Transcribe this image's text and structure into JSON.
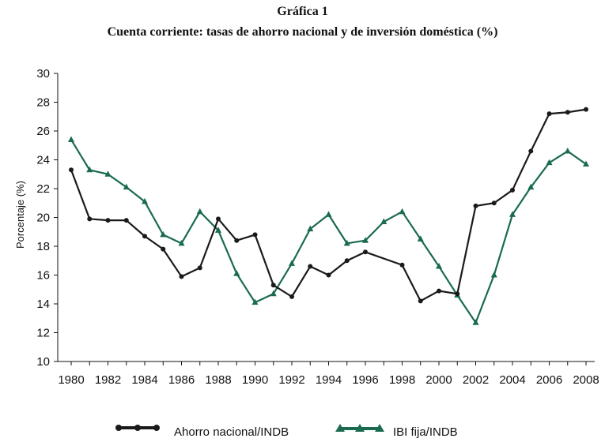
{
  "chart_data": {
    "type": "line",
    "title": "Gráfica 1",
    "subtitle": "Cuenta corriente: tasas de ahorro nacional y de inversión doméstica (%)",
    "xlabel": "",
    "ylabel": "Porcentaje (%)",
    "ylim": [
      10,
      30
    ],
    "xlim": [
      1980,
      2008
    ],
    "y_ticks": [
      "10",
      "12",
      "14",
      "16",
      "18",
      "20",
      "22",
      "24",
      "26",
      "28",
      "30"
    ],
    "x_ticks": [
      "1980",
      "1982",
      "1984",
      "1986",
      "1988",
      "1990",
      "1992",
      "1994",
      "1996",
      "1998",
      "2000",
      "2002",
      "2004",
      "2006",
      "2008"
    ],
    "legend_position": "bottom",
    "series": [
      {
        "name": "Ahorro nacional/INDB",
        "color": "#1a1a1a",
        "marker": "circle",
        "x": [
          1980,
          1981,
          1982,
          1983,
          1984,
          1985,
          1986,
          1987,
          1988,
          1989,
          1990,
          1991,
          1992,
          1993,
          1994,
          1995,
          1996,
          1998,
          1999,
          2000,
          2001,
          2002,
          2003,
          2004,
          2005,
          2006,
          2007,
          2008
        ],
        "values": [
          23.3,
          19.9,
          19.8,
          19.8,
          18.7,
          17.8,
          15.9,
          16.5,
          19.9,
          18.4,
          18.8,
          15.3,
          14.5,
          16.6,
          16.0,
          17.0,
          17.6,
          16.7,
          14.2,
          14.9,
          14.7,
          20.8,
          21.0,
          21.9,
          24.6,
          27.2,
          27.3,
          27.5
        ]
      },
      {
        "name": "IBI fija/INDB",
        "color": "#1a6b4f",
        "marker": "triangle",
        "x": [
          1980,
          1981,
          1982,
          1983,
          1984,
          1985,
          1986,
          1987,
          1988,
          1989,
          1990,
          1991,
          1992,
          1993,
          1994,
          1995,
          1996,
          1997,
          1998,
          1999,
          2000,
          2001,
          2002,
          2003,
          2004,
          2005,
          2006,
          2007,
          2008
        ],
        "values": [
          25.4,
          23.3,
          23.0,
          22.1,
          21.1,
          18.8,
          18.2,
          20.4,
          19.1,
          16.1,
          14.1,
          14.7,
          16.8,
          19.2,
          20.2,
          18.2,
          18.4,
          19.7,
          20.4,
          18.5,
          16.6,
          14.6,
          12.7,
          16.0,
          20.2,
          22.1,
          23.8,
          24.6,
          23.7
        ]
      }
    ]
  }
}
